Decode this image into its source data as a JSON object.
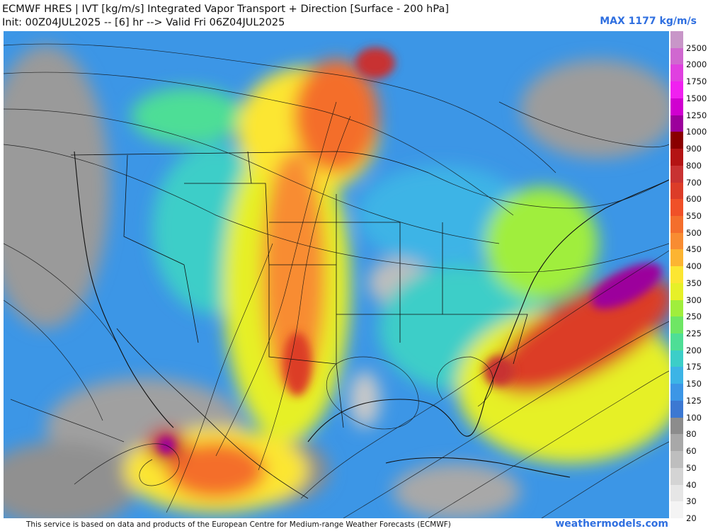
{
  "header": {
    "line1": "ECMWF HRES | IVT [kg/m/s] Integrated Vapor Transport + Direction [Surface - 200 hPa]",
    "line2": "Init: 00Z04JUL2025 -- [6] hr --> Valid Fri 06Z04JUL2025"
  },
  "max_label": "MAX 1177 kg/m/s",
  "colorbar": {
    "labels": [
      "2500",
      "2000",
      "1750",
      "1500",
      "1250",
      "1000",
      "900",
      "800",
      "700",
      "600",
      "550",
      "500",
      "450",
      "400",
      "350",
      "300",
      "250",
      "225",
      "200",
      "175",
      "150",
      "125",
      "100",
      "80",
      "60",
      "50",
      "40",
      "30",
      "20"
    ],
    "colors": [
      "#c896c8",
      "#d068d0",
      "#e040e0",
      "#f020f0",
      "#d000d0",
      "#9c009c",
      "#8a0000",
      "#b41414",
      "#c83232",
      "#dc3c28",
      "#f05028",
      "#f46e2c",
      "#f88c32",
      "#fcb432",
      "#fce632",
      "#e6f028",
      "#a0ee3c",
      "#6ee664",
      "#4ede96",
      "#3ccec8",
      "#3cb4e6",
      "#3c96e6",
      "#3c78d2",
      "#8c8c8c",
      "#a8a8a8",
      "#bebebe",
      "#d4d4d4",
      "#e6e6e6",
      "#f4f4f4"
    ]
  },
  "footer": {
    "attribution": "This service is based on data and products of the European Centre for Medium-range Weather Forecasts (ECMWF)",
    "brand": "weathermodels.com"
  }
}
